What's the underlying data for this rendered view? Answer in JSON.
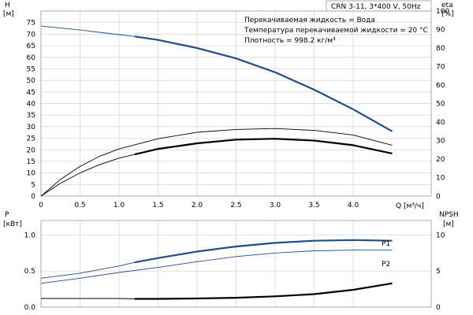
{
  "title": "CRN 3-11, 3*400 V, 50Hz",
  "notes": [
    "Перекачиваемая жидкость = Вода",
    "Температура перекачиваемой жидкости = 20 °C",
    "Плотность = 998.2 кг/м³"
  ],
  "colors": {
    "head": "#1f4e8c",
    "eff": "#000000",
    "power": "#1f4e8c",
    "npsh": "#000000"
  },
  "chart_data": [
    {
      "type": "line",
      "name": "head-efficiency",
      "x_label": "Q [м³/ч]",
      "y_left_label": [
        "H",
        "[м]"
      ],
      "y_right_label": [
        "eta",
        "[%]"
      ],
      "xlim": [
        0,
        5
      ],
      "ylim_left": [
        0,
        80
      ],
      "ylim_right": [
        0,
        100
      ],
      "x_ticks": [
        "0",
        "0.5",
        "1.0",
        "1.5",
        "2.0",
        "2.5",
        "3.0",
        "3.5",
        "4.0"
      ],
      "y_left_ticks": [
        "0",
        "5",
        "10",
        "15",
        "20",
        "25",
        "30",
        "35",
        "40",
        "45",
        "50",
        "55",
        "60",
        "65",
        "70",
        "75"
      ],
      "y_right_ticks": [
        "0",
        "10",
        "20",
        "30",
        "40",
        "50",
        "60",
        "70",
        "80",
        "90",
        "100"
      ],
      "grid": true,
      "series": [
        {
          "role": "head-thin",
          "axis": "left",
          "x": [
            0,
            0.5,
            1.0,
            1.2
          ],
          "y": [
            73.5,
            71.8,
            69.8,
            69
          ]
        },
        {
          "role": "head",
          "axis": "left",
          "x": [
            1.2,
            1.5,
            2.0,
            2.5,
            3.0,
            3.5,
            4.0,
            4.5
          ],
          "y": [
            69,
            67.5,
            64,
            59.5,
            53.5,
            46,
            37.5,
            28
          ]
        },
        {
          "role": "eta-thin-upper",
          "axis": "right",
          "x": [
            0,
            0.25,
            0.5,
            0.75,
            1.0,
            1.5,
            2.0,
            2.5,
            3.0,
            3.5,
            4.0,
            4.5
          ],
          "y": [
            0,
            9,
            16,
            21.5,
            25.5,
            31,
            34.5,
            36,
            36.5,
            35.5,
            33,
            27.5
          ]
        },
        {
          "role": "eta-thin-lower",
          "axis": "right",
          "x": [
            0,
            0.25,
            0.5,
            0.75,
            1.0,
            1.2
          ],
          "y": [
            0,
            7,
            12.5,
            17,
            20.5,
            22.5
          ]
        },
        {
          "role": "eta",
          "axis": "right",
          "x": [
            1.2,
            1.5,
            2.0,
            2.5,
            3.0,
            3.5,
            4.0,
            4.5
          ],
          "y": [
            22.5,
            25.5,
            28.5,
            30.5,
            31,
            30,
            27.5,
            23
          ]
        }
      ]
    },
    {
      "type": "line",
      "name": "power-npsh",
      "y_left_label": [
        "P",
        "[кВт]"
      ],
      "y_right_label": [
        "NPSH",
        "[м]"
      ],
      "xlim": [
        0,
        5
      ],
      "ylim_left": [
        0,
        1.2
      ],
      "ylim_right": [
        0,
        12
      ],
      "y_left_ticks": [
        "0.0",
        "0.5",
        "1.0"
      ],
      "y_right_ticks": [
        "0",
        "5",
        "10"
      ],
      "grid": true,
      "series": [
        {
          "name": "P1",
          "role": "p1-thin",
          "axis": "left",
          "x": [
            0,
            0.5,
            1.0,
            1.2
          ],
          "y": [
            0.4,
            0.47,
            0.57,
            0.62
          ]
        },
        {
          "name": "P1",
          "role": "p1",
          "axis": "left",
          "x": [
            1.2,
            1.5,
            2.0,
            2.5,
            3.0,
            3.5,
            4.0,
            4.5
          ],
          "y": [
            0.62,
            0.68,
            0.77,
            0.84,
            0.89,
            0.92,
            0.93,
            0.92
          ]
        },
        {
          "name": "P2",
          "role": "p2",
          "axis": "left",
          "x": [
            0,
            0.5,
            1.0,
            1.5,
            2.0,
            2.5,
            3.0,
            3.5,
            4.0,
            4.5
          ],
          "y": [
            0.33,
            0.4,
            0.48,
            0.55,
            0.63,
            0.7,
            0.75,
            0.78,
            0.79,
            0.79
          ]
        },
        {
          "role": "npsh-thin",
          "axis": "right",
          "x": [
            0,
            0.5,
            1.0,
            1.2
          ],
          "y": [
            1.2,
            1.2,
            1.2,
            1.15
          ]
        },
        {
          "role": "npsh",
          "axis": "right",
          "x": [
            1.2,
            1.5,
            2.0,
            2.5,
            3.0,
            3.5,
            4.0,
            4.5
          ],
          "y": [
            1.15,
            1.15,
            1.2,
            1.3,
            1.5,
            1.8,
            2.4,
            3.3
          ]
        }
      ]
    }
  ]
}
